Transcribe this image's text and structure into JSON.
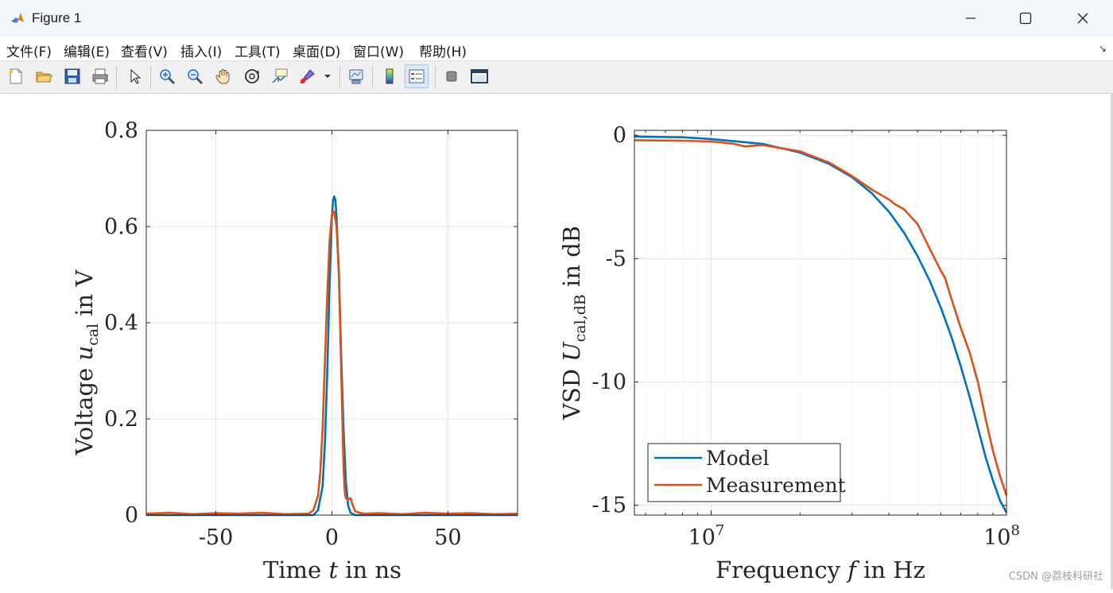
{
  "window": {
    "title": "Figure 1",
    "controls": [
      "minimize",
      "maximize",
      "close"
    ]
  },
  "menu": {
    "items": [
      "文件(F)",
      "编辑(E)",
      "查看(V)",
      "插入(I)",
      "工具(T)",
      "桌面(D)",
      "窗口(W)",
      "帮助(H)"
    ]
  },
  "toolbar": {
    "buttons": [
      {
        "name": "new-figure",
        "icon": "new-file-icon"
      },
      {
        "name": "open-file",
        "icon": "folder-open-icon"
      },
      {
        "name": "save",
        "icon": "save-icon"
      },
      {
        "name": "print",
        "icon": "print-icon"
      },
      {
        "name": "edit-plot",
        "icon": "pointer-arrow-icon"
      },
      {
        "name": "zoom-in",
        "icon": "zoom-in-icon"
      },
      {
        "name": "zoom-out",
        "icon": "zoom-out-icon"
      },
      {
        "name": "pan",
        "icon": "hand-icon"
      },
      {
        "name": "rotate-3d",
        "icon": "rotate-3d-icon"
      },
      {
        "name": "data-cursor",
        "icon": "data-cursor-icon"
      },
      {
        "name": "brush",
        "icon": "brush-icon"
      },
      {
        "name": "link-plot",
        "icon": "link-plot-icon"
      },
      {
        "name": "colorbar",
        "icon": "colorbar-icon"
      },
      {
        "name": "legend",
        "icon": "legend-icon"
      },
      {
        "name": "hide-plot-tools",
        "icon": "hide-tools-icon"
      },
      {
        "name": "show-plot-tools",
        "icon": "show-tools-icon"
      }
    ]
  },
  "colors": {
    "model": "#0072bd",
    "measurement": "#d95319",
    "axes": "#262626",
    "grid": "#e6e6e6"
  },
  "chart_data": [
    {
      "type": "line",
      "title": "",
      "xlabel_parts": [
        "Time ",
        "t",
        " in ns"
      ],
      "ylabel_parts": [
        "Voltage ",
        "u",
        "cal",
        " in V"
      ],
      "xlim": [
        -80,
        80
      ],
      "ylim": [
        0,
        0.8
      ],
      "x_ticks": [
        -50,
        0,
        50
      ],
      "x_tick_labels": [
        "-50",
        "0",
        "50"
      ],
      "y_ticks": [
        0,
        0.2,
        0.4,
        0.6,
        0.8
      ],
      "y_tick_labels": [
        "0",
        "0.2",
        "0.4",
        "0.6",
        "0.8"
      ],
      "grid": true,
      "series": [
        {
          "color": "#0072bd",
          "x": [
            -80,
            -8,
            -6,
            -4,
            -3,
            -2,
            -1,
            0,
            0.5,
            1,
            1.5,
            2,
            3,
            4,
            5,
            6,
            7,
            8,
            10,
            80
          ],
          "y": [
            0,
            0,
            0.01,
            0.06,
            0.15,
            0.3,
            0.48,
            0.62,
            0.655,
            0.663,
            0.655,
            0.62,
            0.5,
            0.33,
            0.18,
            0.07,
            0.02,
            0.005,
            0,
            0
          ]
        },
        {
          "color": "#d95319",
          "x": [
            -80,
            -70,
            -60,
            -50,
            -40,
            -30,
            -20,
            -10,
            -8,
            -6,
            -5,
            -4,
            -3,
            -2,
            -1,
            0,
            0.5,
            1,
            2,
            3,
            4,
            5,
            5.5,
            6,
            7,
            8,
            9,
            10,
            12,
            14,
            20,
            30,
            40,
            50,
            60,
            70,
            80
          ],
          "y": [
            0.003,
            0.005,
            0.002,
            0.004,
            0.003,
            0.005,
            0.002,
            0.003,
            0.01,
            0.04,
            0.09,
            0.18,
            0.32,
            0.46,
            0.57,
            0.625,
            0.632,
            0.63,
            0.6,
            0.5,
            0.3,
            0.1,
            0.05,
            0.035,
            0.032,
            0.035,
            0.02,
            0.008,
            0.005,
            0.003,
            0.004,
            0.002,
            0.005,
            0.003,
            0.004,
            0.002,
            0.003
          ]
        }
      ]
    },
    {
      "type": "line",
      "title": "",
      "xscale": "log",
      "xlabel_parts": [
        "Frequency ",
        "f",
        " in Hz"
      ],
      "ylabel_parts": [
        "VSD ",
        "U",
        "cal,dB",
        " in dB"
      ],
      "xlim": [
        5500000,
        100000000
      ],
      "ylim": [
        -15.4,
        0.2
      ],
      "x_ticks": [
        10000000,
        100000000
      ],
      "x_tick_labels": [
        [
          "10",
          "7"
        ],
        [
          "10",
          "8"
        ]
      ],
      "y_ticks": [
        -15,
        -10,
        -5,
        0
      ],
      "y_tick_labels": [
        "-15",
        "-10",
        "-5",
        "0"
      ],
      "grid": true,
      "legend": {
        "position": "bottom-left",
        "entries": [
          "Model",
          "Measurement"
        ]
      },
      "series": [
        {
          "name": "Model",
          "color": "#0072bd",
          "x": [
            5500000,
            8000000,
            10000000,
            15000000,
            20000000,
            25000000,
            30000000,
            35000000,
            40000000,
            45000000,
            50000000,
            55000000,
            60000000,
            65000000,
            70000000,
            75000000,
            80000000,
            85000000,
            90000000,
            95000000,
            100000000
          ],
          "y": [
            -0.05,
            -0.08,
            -0.15,
            -0.35,
            -0.7,
            -1.15,
            -1.7,
            -2.35,
            -3.1,
            -3.95,
            -4.9,
            -5.9,
            -7.0,
            -8.15,
            -9.35,
            -10.6,
            -11.85,
            -13.05,
            -14.0,
            -14.8,
            -15.3
          ]
        },
        {
          "name": "Measurement",
          "color": "#d95319",
          "x": [
            5500000,
            8000000,
            10000000,
            11000000,
            12000000,
            13000000,
            15000000,
            20000000,
            25000000,
            30000000,
            35000000,
            40000000,
            42000000,
            45000000,
            50000000,
            55000000,
            60000000,
            62000000,
            65000000,
            70000000,
            75000000,
            80000000,
            82000000,
            85000000,
            90000000,
            95000000,
            100000000
          ],
          "y": [
            -0.2,
            -0.22,
            -0.25,
            -0.3,
            -0.35,
            -0.45,
            -0.4,
            -0.65,
            -1.1,
            -1.65,
            -2.2,
            -2.6,
            -2.8,
            -3.0,
            -3.6,
            -4.6,
            -5.5,
            -5.8,
            -6.6,
            -7.8,
            -8.8,
            -10.0,
            -10.6,
            -11.5,
            -12.8,
            -13.8,
            -14.6
          ]
        }
      ]
    }
  ],
  "watermark": "CSDN @荔枝科研社"
}
